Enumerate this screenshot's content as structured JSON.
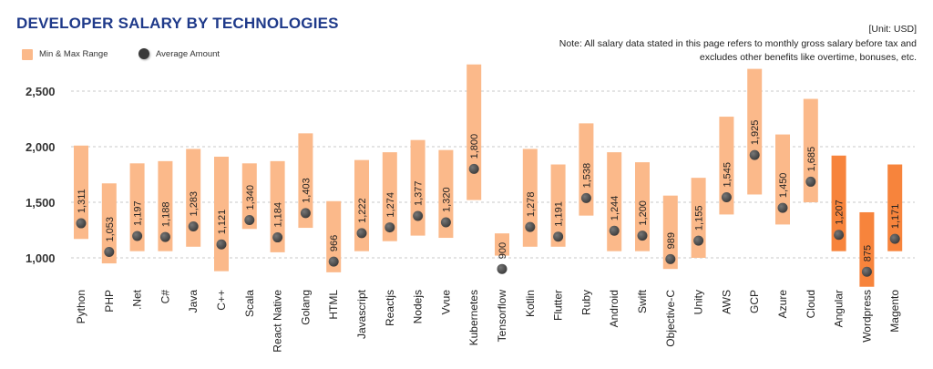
{
  "title": "DEVELOPER SALARY BY TECHNOLOGIES",
  "unit": "[Unit: USD]",
  "note": "Note: All salary data stated in this page refers to monthly gross salary before tax and excludes other benefits like overtime, bonuses, etc.",
  "legend": {
    "range_label": "Min & Max Range",
    "average_label": "Average Amount"
  },
  "colors": {
    "range": "#fbb98a",
    "range_highlight": "#f7843c",
    "dot": "#3a3a3a",
    "grid": "#c9c9c9",
    "title": "#1f3a8a"
  },
  "chart_data": {
    "type": "bar",
    "subtype": "range-with-average",
    "categories": [
      "Python",
      "PHP",
      ".Net",
      "C#",
      "Java",
      "C++",
      "Scala",
      "React Native",
      "Golang",
      "HTML",
      "Javascript",
      "Reactjs",
      "Nodejs",
      "Vvue",
      "Kubernetes",
      "Tensorflow",
      "Kotlin",
      "Flutter",
      "Ruby",
      "Android",
      "Swift",
      "Objective-C",
      "Unity",
      "AWS",
      "GCP",
      "Azure",
      "Cloud",
      "Angular",
      "Wordpress",
      "Magento"
    ],
    "min": [
      1170,
      950,
      1060,
      1060,
      1100,
      880,
      1260,
      1050,
      1270,
      870,
      1060,
      1150,
      1200,
      1180,
      1520,
      1020,
      1100,
      1100,
      1380,
      1060,
      1060,
      900,
      1000,
      1390,
      1570,
      1300,
      1500,
      1060,
      740,
      1060
    ],
    "max": [
      2010,
      1670,
      1850,
      1870,
      1980,
      1910,
      1850,
      1870,
      2120,
      1510,
      1880,
      1950,
      2060,
      1970,
      2740,
      1220,
      1980,
      1840,
      2210,
      1950,
      1860,
      1560,
      1720,
      2270,
      2700,
      2110,
      2430,
      1920,
      1410,
      1840
    ],
    "average": [
      1311,
      1053,
      1197,
      1188,
      1283,
      1121,
      1340,
      1184,
      1403,
      966,
      1222,
      1274,
      1377,
      1320,
      1800,
      900,
      1278,
      1191,
      1538,
      1244,
      1200,
      989,
      1155,
      1545,
      1925,
      1450,
      1685,
      1207,
      875,
      1171
    ],
    "average_labels": [
      "1,311",
      "1,053",
      "1,197",
      "1,188",
      "1,283",
      "1,121",
      "1,340",
      "1,184",
      "1,403",
      "966",
      "1,222",
      "1,274",
      "1,377",
      "1,320",
      "1,800",
      "900",
      "1,278",
      "1,191",
      "1,538",
      "1,244",
      "1,200",
      "989",
      "1,155",
      "1,545",
      "1,925",
      "1,450",
      "1,685",
      "1,207",
      "875",
      "1,171"
    ],
    "highlighted": [
      "Angular",
      "Wordpress",
      "Magento"
    ],
    "yticks": [
      1000,
      1500,
      2000,
      2500
    ],
    "ytick_labels": [
      "1,000",
      "1,500",
      "2,000",
      "2,500"
    ],
    "ylim": [
      700,
      2800
    ],
    "grid": true,
    "legend_position": "top-left"
  }
}
